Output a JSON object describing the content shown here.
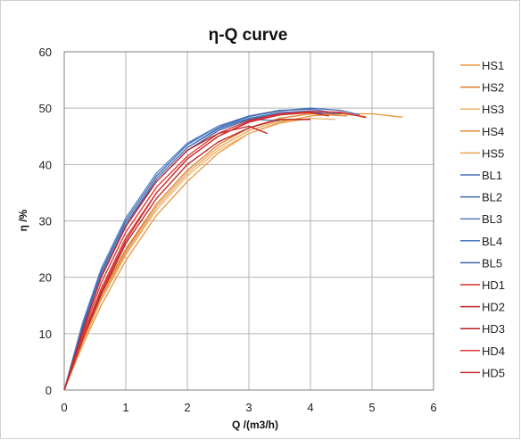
{
  "chart_data": {
    "type": "line",
    "title": "η-Q  curve",
    "xlabel": "Q /(m3/h)",
    "ylabel": "η /%",
    "xlim": [
      0,
      6
    ],
    "ylim": [
      0,
      60
    ],
    "xticks": [
      0,
      1,
      2,
      3,
      4,
      5,
      6
    ],
    "yticks": [
      0,
      10,
      20,
      30,
      40,
      50,
      60
    ],
    "grid": true,
    "legend": "right",
    "series": [
      {
        "name": "HS1",
        "color": "#e8963a",
        "x": [
          0,
          0.3,
          0.6,
          1.0,
          1.5,
          2.0,
          2.5,
          3.0,
          3.5,
          4.0,
          4.5,
          5.0,
          5.5
        ],
        "y": [
          0,
          8,
          15,
          23,
          31,
          37,
          42,
          45.5,
          47.5,
          48.6,
          49.0,
          49.0,
          48.4
        ]
      },
      {
        "name": "HS2",
        "color": "#dc7a28",
        "x": [
          0,
          0.3,
          0.6,
          1.0,
          1.5,
          2.0,
          2.5,
          3.0,
          3.5,
          4.0,
          4.5,
          4.9
        ],
        "y": [
          0,
          9,
          17,
          25,
          33,
          39,
          43.5,
          46.5,
          48.2,
          49.0,
          49.0,
          48.5
        ]
      },
      {
        "name": "HS3",
        "color": "#f2b06a",
        "x": [
          0,
          0.3,
          0.6,
          1.0,
          1.5,
          2.0,
          2.5,
          3.0,
          3.5,
          4.0,
          4.4
        ],
        "y": [
          0,
          8.5,
          16,
          24,
          32,
          38,
          42.5,
          45.5,
          47.3,
          48.2,
          48.0
        ]
      },
      {
        "name": "HS4",
        "color": "#e08a35",
        "x": [
          0,
          0.3,
          0.6,
          1.0,
          1.5,
          2.0,
          2.5,
          3.0,
          3.5,
          4.0,
          4.6
        ],
        "y": [
          0,
          9,
          16.5,
          24.5,
          33,
          39,
          43.5,
          46.5,
          48.2,
          49.0,
          48.6
        ]
      },
      {
        "name": "HS5",
        "color": "#eaa055",
        "x": [
          0,
          0.3,
          0.6,
          1.0,
          1.5,
          2.0,
          2.5,
          3.0,
          3.5,
          4.0
        ],
        "y": [
          0,
          8.5,
          16,
          24,
          32.5,
          38.5,
          43,
          46,
          47.8,
          48.0
        ]
      },
      {
        "name": "BL1",
        "color": "#4a72b8",
        "x": [
          0,
          0.3,
          0.6,
          1.0,
          1.5,
          2.0,
          2.5,
          3.0,
          3.5,
          4.0,
          4.5,
          4.8
        ],
        "y": [
          0,
          11,
          20,
          29,
          37.5,
          43,
          46.5,
          48.5,
          49.5,
          50.0,
          49.6,
          48.8
        ]
      },
      {
        "name": "BL2",
        "color": "#3f68ad",
        "x": [
          0,
          0.3,
          0.6,
          1.0,
          1.5,
          2.0,
          2.5,
          3.0,
          3.5,
          4.0,
          4.5
        ],
        "y": [
          0,
          11.5,
          21,
          30,
          38,
          43.5,
          46.8,
          48.6,
          49.6,
          49.8,
          49.0
        ]
      },
      {
        "name": "BL3",
        "color": "#5580c4",
        "x": [
          0,
          0.3,
          0.6,
          1.0,
          1.5,
          2.0,
          2.5,
          3.0,
          3.5
        ],
        "y": [
          0,
          12,
          21.5,
          30.5,
          38.5,
          43.8,
          46.8,
          48.0,
          47.8
        ]
      },
      {
        "name": "BL4",
        "color": "#4875bb",
        "x": [
          0,
          0.3,
          0.6,
          1.0,
          1.5,
          2.0,
          2.5,
          3.0,
          3.5,
          4.0,
          4.4
        ],
        "y": [
          0,
          11,
          20.5,
          29.5,
          37.5,
          43,
          46.3,
          48.2,
          49.2,
          49.5,
          49.0
        ]
      },
      {
        "name": "BL5",
        "color": "#3a62a6",
        "x": [
          0,
          0.3,
          0.6,
          1.0,
          1.5,
          2.0,
          2.5,
          3.0,
          3.5,
          4.0,
          4.2
        ],
        "y": [
          0,
          11,
          20,
          29,
          37,
          42.5,
          46,
          48,
          49,
          49.4,
          49.0
        ]
      },
      {
        "name": "HD1",
        "color": "#d82f2f",
        "x": [
          0,
          0.3,
          0.6,
          1.0,
          1.5,
          2.0,
          2.5,
          3.0,
          3.5,
          4.0,
          4.5,
          4.9
        ],
        "y": [
          0,
          10,
          19,
          28,
          36,
          41.5,
          45.5,
          47.8,
          49.0,
          49.4,
          49.3,
          48.3
        ]
      },
      {
        "name": "HD2",
        "color": "#c42424",
        "x": [
          0,
          0.3,
          0.6,
          1.0,
          1.5,
          2.0,
          2.5,
          3.0,
          3.3
        ],
        "y": [
          0,
          10.5,
          20,
          29,
          37,
          42.5,
          45.5,
          46.8,
          45.5
        ]
      },
      {
        "name": "HD3",
        "color": "#b81e1e",
        "x": [
          0,
          0.3,
          0.6,
          1.0,
          1.5,
          2.0,
          2.5,
          3.0,
          3.5,
          4.0
        ],
        "y": [
          0,
          9,
          17,
          26,
          34,
          40,
          44,
          46.5,
          48.0,
          48.0
        ]
      },
      {
        "name": "HD4",
        "color": "#e03a3a",
        "x": [
          0,
          0.3,
          0.6,
          1.0,
          1.5,
          2.0,
          2.5,
          3.0,
          3.5,
          4.0,
          4.5,
          4.8
        ],
        "y": [
          0,
          9.5,
          18,
          27,
          35,
          41,
          45,
          47.5,
          48.8,
          49.4,
          49.2,
          48.6
        ]
      },
      {
        "name": "HD5",
        "color": "#cc2b2b",
        "x": [
          0,
          0.3,
          0.6,
          1.0,
          1.5,
          2.0,
          2.5,
          3.0,
          3.5,
          4.0,
          4.3
        ],
        "y": [
          0,
          9,
          17.5,
          26.5,
          35,
          41,
          45,
          47.6,
          48.8,
          49.2,
          48.6
        ]
      }
    ]
  }
}
